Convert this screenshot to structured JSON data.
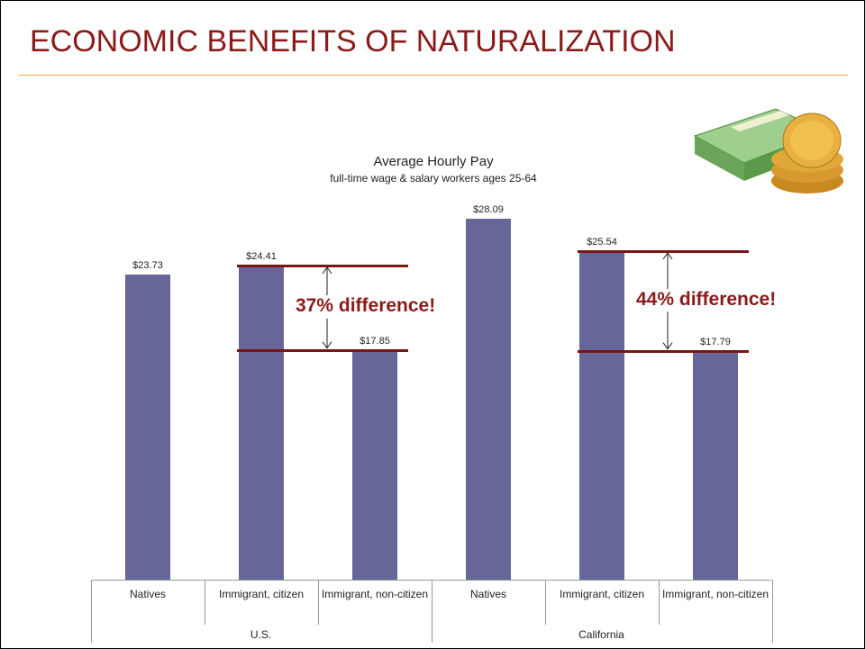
{
  "title": "ECONOMIC BENEFITS OF NATURALIZATION",
  "chart_data": {
    "type": "bar",
    "title": "Average Hourly Pay",
    "subtitle": "full-time wage & salary workers ages 25-64",
    "categories": [
      "Natives",
      "Immigrant, citizen",
      "Immigrant, non-citizen",
      "Natives",
      "Immigrant, citizen",
      "Immigrant, non-citizen"
    ],
    "groups": [
      "U.S.",
      "California"
    ],
    "values": [
      23.73,
      24.41,
      17.85,
      28.09,
      25.54,
      17.79
    ],
    "value_labels": [
      "$23.73",
      "$24.41",
      "$17.85",
      "$28.09",
      "$25.54",
      "$17.79"
    ],
    "color": "#666699",
    "annotations": [
      "37% difference!",
      "44% difference!"
    ]
  }
}
